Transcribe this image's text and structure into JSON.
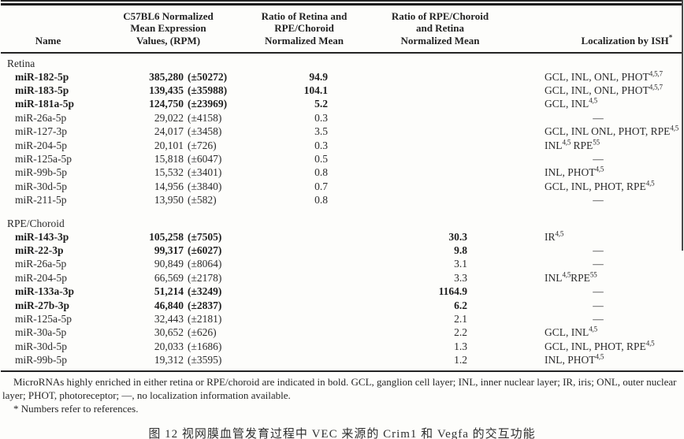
{
  "table": {
    "columns": [
      {
        "label": "Name"
      },
      {
        "label": "C57BL6 Normalized\nMean Expression\nValues, (RPM)"
      },
      {
        "label": "Ratio of Retina and\nRPE/Choroid\nNormalized Mean"
      },
      {
        "label": "Ratio of RPE/Choroid\nand Retina\nNormalized Mean"
      },
      {
        "label": "Localization by ISH",
        "sup": "*"
      }
    ],
    "sections": [
      {
        "label": "Retina",
        "ratio_column": 1,
        "rows": [
          {
            "name": "miR-182-5p",
            "bold": true,
            "value": "385,280",
            "error": "(±50272)",
            "ratio": "94.9",
            "loc": [
              {
                "text": "GCL, INL, ONL, PHOT",
                "sup": "4,5,7"
              }
            ]
          },
          {
            "name": "miR-183-5p",
            "bold": true,
            "value": "139,435",
            "error": "(±35988)",
            "ratio": "104.1",
            "loc": [
              {
                "text": "GCL, INL, ONL, PHOT",
                "sup": "4,5,7"
              }
            ]
          },
          {
            "name": "miR-181a-5p",
            "bold": true,
            "value": "124,750",
            "error": "(±23969)",
            "ratio": "5.2",
            "loc": [
              {
                "text": "GCL, INL",
                "sup": "4,5"
              }
            ]
          },
          {
            "name": "miR-26a-5p",
            "bold": false,
            "value": "29,022",
            "error": "(±4158)",
            "ratio": "0.3",
            "loc": "—"
          },
          {
            "name": "miR-127-3p",
            "bold": false,
            "value": "24,017",
            "error": "(±3458)",
            "ratio": "3.5",
            "loc": [
              {
                "text": "GCL, INL ONL, PHOT, RPE",
                "sup": "4,5"
              }
            ]
          },
          {
            "name": "miR-204-5p",
            "bold": false,
            "value": "20,101",
            "error": "(±726)",
            "ratio": "0.3",
            "loc": [
              {
                "text": "INL",
                "sup": "4,5"
              },
              {
                "text": " RPE",
                "sup": "55"
              }
            ]
          },
          {
            "name": "miR-125a-5p",
            "bold": false,
            "value": "15,818",
            "error": "(±6047)",
            "ratio": "0.5",
            "loc": "—"
          },
          {
            "name": "miR-99b-5p",
            "bold": false,
            "value": "15,532",
            "error": "(±3401)",
            "ratio": "0.8",
            "loc": [
              {
                "text": "INL, PHOT",
                "sup": "4,5"
              }
            ]
          },
          {
            "name": "miR-30d-5p",
            "bold": false,
            "value": "14,956",
            "error": "(±3840)",
            "ratio": "0.7",
            "loc": [
              {
                "text": "GCL, INL, PHOT, RPE",
                "sup": "4,5"
              }
            ]
          },
          {
            "name": "miR-211-5p",
            "bold": false,
            "value": "13,950",
            "error": "(±582)",
            "ratio": "0.8",
            "loc": "—"
          }
        ]
      },
      {
        "label": "RPE/Choroid",
        "ratio_column": 2,
        "rows": [
          {
            "name": "miR-143-3p",
            "bold": true,
            "value": "105,258",
            "error": "(±7505)",
            "ratio": "30.3",
            "loc": [
              {
                "text": "IR",
                "sup": "4,5"
              }
            ]
          },
          {
            "name": "miR-22-3p",
            "bold": true,
            "value": "99,317",
            "error": "(±6027)",
            "ratio": "9.8",
            "loc": "—"
          },
          {
            "name": "miR-26a-5p",
            "bold": false,
            "value": "90,849",
            "error": "(±8064)",
            "ratio": "3.1",
            "loc": "—"
          },
          {
            "name": "miR-204-5p",
            "bold": false,
            "value": "66,569",
            "error": "(±2178)",
            "ratio": "3.3",
            "loc": [
              {
                "text": "INL",
                "sup": "4,5"
              },
              {
                "text": "RPE",
                "sup": "55"
              }
            ]
          },
          {
            "name": "miR-133a-3p",
            "bold": true,
            "value": "51,214",
            "error": "(±3249)",
            "ratio": "1164.9",
            "loc": "—"
          },
          {
            "name": "miR-27b-3p",
            "bold": true,
            "value": "46,840",
            "error": "(±2837)",
            "ratio": "6.2",
            "loc": "—"
          },
          {
            "name": "miR-125a-5p",
            "bold": false,
            "value": "32,443",
            "error": "(±2181)",
            "ratio": "2.1",
            "loc": "—"
          },
          {
            "name": "miR-30a-5p",
            "bold": false,
            "value": "30,652",
            "error": "(±626)",
            "ratio": "2.2",
            "loc": [
              {
                "text": "GCL, INL",
                "sup": "4,5"
              }
            ]
          },
          {
            "name": "miR-30d-5p",
            "bold": false,
            "value": "20,033",
            "error": "(±1686)",
            "ratio": "1.3",
            "loc": [
              {
                "text": "GCL, INL, PHOT, RPE",
                "sup": "4,5"
              }
            ]
          },
          {
            "name": "miR-99b-5p",
            "bold": false,
            "value": "19,312",
            "error": "(±3595)",
            "ratio": "1.2",
            "loc": [
              {
                "text": "INL, PHOT",
                "sup": "4,5"
              }
            ]
          }
        ]
      }
    ]
  },
  "footnotes": {
    "main": "MicroRNAs highly enriched in either retina or RPE/choroid are indicated in bold. GCL, ganglion cell layer; INL, inner nuclear layer; IR, iris; ONL, outer nuclear layer; PHOT, photoreceptor; —, no localization information available.",
    "refs": "* Numbers refer to references."
  },
  "caption": "图 12 视网膜血管发育过程中 VEC 来源的 Crim1 和 Vegfa 的交互功能",
  "colors": {
    "text": "#2b2b2b",
    "rule": "#242424",
    "background": "#fdfdfb"
  }
}
